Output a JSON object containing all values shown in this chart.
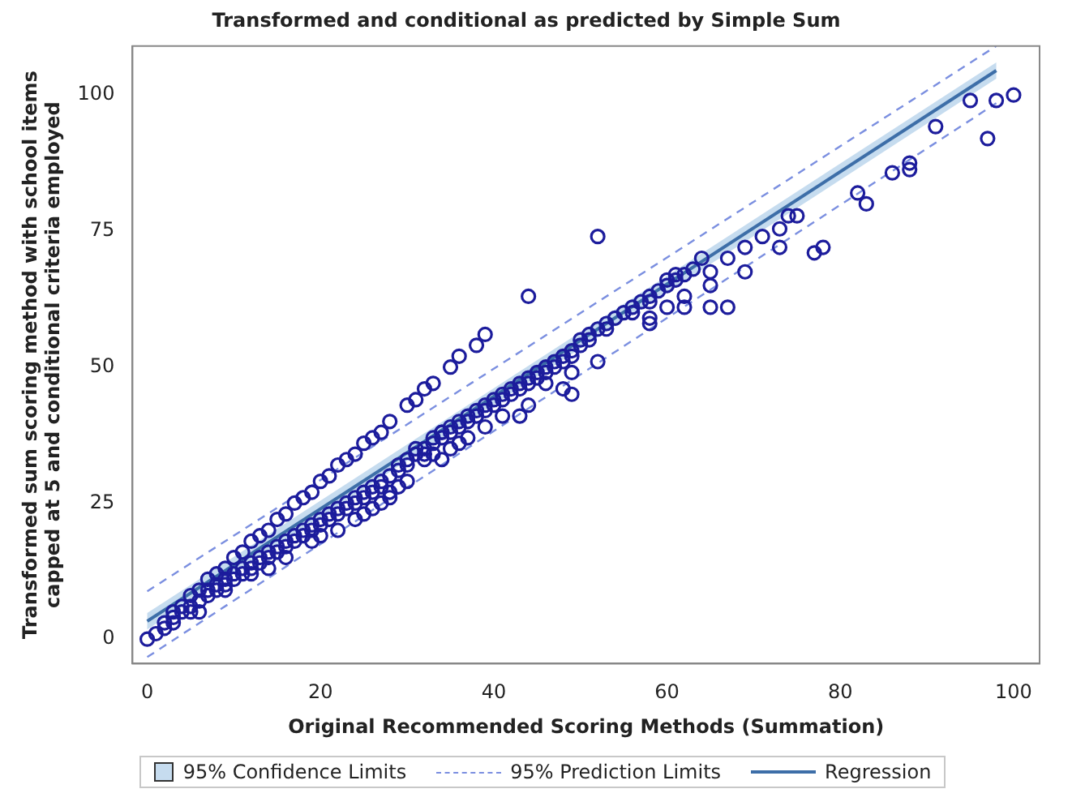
{
  "chart_data": {
    "type": "scatter",
    "title": "Transformed and conditional as predicted by Simple Sum",
    "xlabel": "Original Recommended Scoring Methods (Summation)",
    "ylabel": "Transformed sum scoring method with school items capped at 5 and conditional criteria employed",
    "xlim": [
      -1.7,
      103
    ],
    "ylim": [
      -4.5,
      109
    ],
    "xticks": [
      0,
      20,
      40,
      60,
      80,
      100
    ],
    "yticks": [
      0,
      25,
      50,
      75,
      100
    ],
    "grid": false,
    "legend": "bottom",
    "series": [
      {
        "type": "line",
        "name": "95% Prediction Limits",
        "color": "#7b8fe0",
        "line_style": "dashed",
        "x": [
          0,
          98
        ],
        "values": [
          8.8,
          109
        ]
      },
      {
        "type": "line",
        "color": "#7b8fe0",
        "line_style": "dashed",
        "x": [
          0,
          98
        ],
        "values": [
          -3.3,
          98.5
        ]
      },
      {
        "type": "line",
        "name": "Regression",
        "color": "#3d6ea8",
        "line_style": "solid",
        "x": [
          0,
          98
        ],
        "values": [
          3.3,
          104.5
        ],
        "lower": [
          1.8,
          103
        ],
        "upper": [
          4.8,
          106
        ]
      },
      {
        "color": "#1c1c9c",
        "marker": "circle",
        "x": [
          0,
          1,
          2,
          2,
          3,
          4,
          5,
          5,
          6,
          7,
          7,
          8,
          8,
          9,
          9,
          10,
          10,
          11,
          11,
          12,
          12,
          13,
          13,
          14,
          14,
          15,
          15,
          16,
          16,
          17,
          17,
          18,
          18,
          19,
          19,
          20,
          20,
          21,
          21,
          22,
          22,
          23,
          23,
          24,
          24,
          25,
          25,
          26,
          26,
          27,
          27,
          28,
          28,
          29,
          29,
          30,
          30,
          31,
          31,
          32,
          32,
          33,
          33,
          34,
          34,
          35,
          35,
          36,
          36,
          37,
          37,
          38,
          38,
          39,
          39,
          40,
          40,
          41,
          41,
          42,
          42,
          43,
          43,
          44,
          44,
          45,
          45,
          46,
          46,
          47,
          47,
          48,
          48,
          49,
          49,
          50,
          50,
          51,
          51,
          52,
          53,
          53,
          54,
          55,
          56,
          56,
          57,
          58,
          58,
          59,
          60,
          60,
          61,
          61,
          62,
          63,
          64,
          65,
          3,
          4,
          5,
          6,
          7,
          8,
          9,
          10,
          11,
          12,
          13,
          14,
          15,
          16,
          17,
          18,
          19,
          20,
          21,
          22,
          23,
          24,
          25,
          26,
          27,
          28,
          30,
          31,
          32,
          33,
          35,
          36,
          38,
          39,
          3,
          6,
          9,
          12,
          14,
          16,
          19,
          20,
          22,
          24,
          25,
          26,
          27,
          28,
          29,
          30,
          32,
          33,
          34,
          35,
          36,
          37,
          39,
          41,
          43,
          44,
          46,
          48,
          49,
          52,
          58,
          58,
          60,
          62,
          62,
          34,
          44,
          52,
          49,
          65,
          67,
          69,
          71,
          73,
          74,
          75,
          73,
          77,
          78,
          69,
          65,
          67,
          82,
          83,
          86,
          88,
          88,
          91,
          97,
          95,
          98,
          100
        ],
        "values": [
          0,
          1,
          2,
          3,
          4,
          5,
          6,
          5,
          7,
          8,
          9,
          10,
          9,
          11,
          10,
          12,
          11,
          13,
          12,
          14,
          13,
          15,
          14,
          16,
          15,
          17,
          16,
          18,
          17,
          19,
          18,
          20,
          19,
          21,
          20,
          22,
          21,
          23,
          22,
          24,
          23,
          25,
          24,
          26,
          25,
          27,
          26,
          28,
          27,
          29,
          28,
          30,
          27,
          31,
          32,
          33,
          32,
          34,
          35,
          35,
          34,
          36,
          37,
          37,
          38,
          38,
          39,
          40,
          39,
          41,
          40,
          42,
          41,
          43,
          42,
          44,
          43,
          45,
          44,
          46,
          45,
          47,
          46,
          48,
          47,
          49,
          48,
          50,
          49,
          51,
          50,
          52,
          51,
          53,
          52,
          54,
          55,
          56,
          55,
          57,
          58,
          57,
          59,
          60,
          61,
          60,
          62,
          63,
          62,
          64,
          65,
          66,
          67,
          66,
          67,
          68,
          70,
          67.5,
          5,
          6,
          8,
          9,
          11,
          12,
          13,
          15,
          16,
          18,
          19,
          20,
          22,
          23,
          25,
          26,
          27,
          29,
          30,
          32,
          33,
          34,
          36,
          37,
          38,
          40,
          43,
          44,
          46,
          47,
          50,
          52,
          54,
          56,
          3,
          5,
          9,
          12,
          13,
          15,
          18,
          19,
          20,
          22,
          23,
          24,
          25,
          26,
          28,
          29,
          33,
          34,
          33,
          35,
          36,
          37,
          39,
          41,
          41,
          43,
          47,
          46,
          45,
          51,
          58,
          59,
          61,
          61,
          63,
          38,
          63,
          74,
          49,
          61,
          61,
          72,
          74,
          75.4,
          77.8,
          77.8,
          72,
          71,
          72,
          67.5,
          65,
          70,
          82,
          80,
          85.7,
          87.5,
          86.3,
          94.2,
          92,
          99,
          99,
          100
        ]
      },
      {
        "type": "area",
        "name": "95% Confidence Limits",
        "color": "#c6dcef"
      }
    ]
  }
}
